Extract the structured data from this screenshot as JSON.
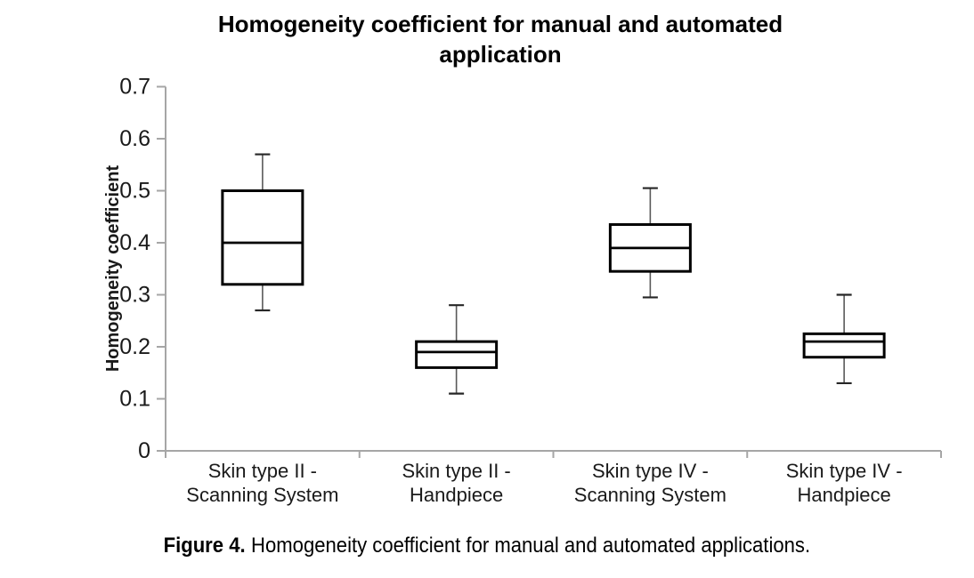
{
  "title": {
    "line1": "Homogeneity coefficient for manual and automated",
    "line2": "application"
  },
  "caption": {
    "prefix": "Figure 4.",
    "text": "Homogeneity coefficient for manual and automated applications."
  },
  "colors": {
    "axis_line": "#a6a6a6",
    "box_stroke": "#000000",
    "box_fill": "#ffffff",
    "whisker_line": "#595959",
    "whisker_cap": "#262626",
    "text": "#1a1a1a"
  },
  "chart_data": {
    "type": "boxplot",
    "title": "Homogeneity coefficient for manual and automated application",
    "xlabel": "",
    "ylabel": "Homogeneity coefficient",
    "ylim": [
      0,
      0.7
    ],
    "grid": false,
    "legend": null,
    "yticks": [
      {
        "value": 0,
        "label": "0"
      },
      {
        "value": 0.1,
        "label": "0.1"
      },
      {
        "value": 0.2,
        "label": "0.2"
      },
      {
        "value": 0.3,
        "label": "0.3"
      },
      {
        "value": 0.4,
        "label": "0.4"
      },
      {
        "value": 0.5,
        "label": "0.5"
      },
      {
        "value": 0.6,
        "label": "0.6"
      },
      {
        "value": 0.7,
        "label": "0.7"
      }
    ],
    "categories": [
      "Skin type II - Scanning System",
      "Skin type II - Handpiece",
      "Skin type IV - Scanning System",
      "Skin type IV - Handpiece"
    ],
    "category_label_lines": [
      [
        "Skin type II -",
        "Scanning System"
      ],
      [
        "Skin type II -",
        "Handpiece"
      ],
      [
        "Skin type IV -",
        "Scanning System"
      ],
      [
        "Skin type IV -",
        "Handpiece"
      ]
    ],
    "boxes": [
      {
        "whisker_low": 0.27,
        "q1": 0.32,
        "median": 0.4,
        "q3": 0.5,
        "whisker_high": 0.57
      },
      {
        "whisker_low": 0.11,
        "q1": 0.16,
        "median": 0.19,
        "q3": 0.21,
        "whisker_high": 0.28
      },
      {
        "whisker_low": 0.295,
        "q1": 0.345,
        "median": 0.39,
        "q3": 0.435,
        "whisker_high": 0.505
      },
      {
        "whisker_low": 0.13,
        "q1": 0.18,
        "median": 0.21,
        "q3": 0.225,
        "whisker_high": 0.3
      }
    ]
  }
}
